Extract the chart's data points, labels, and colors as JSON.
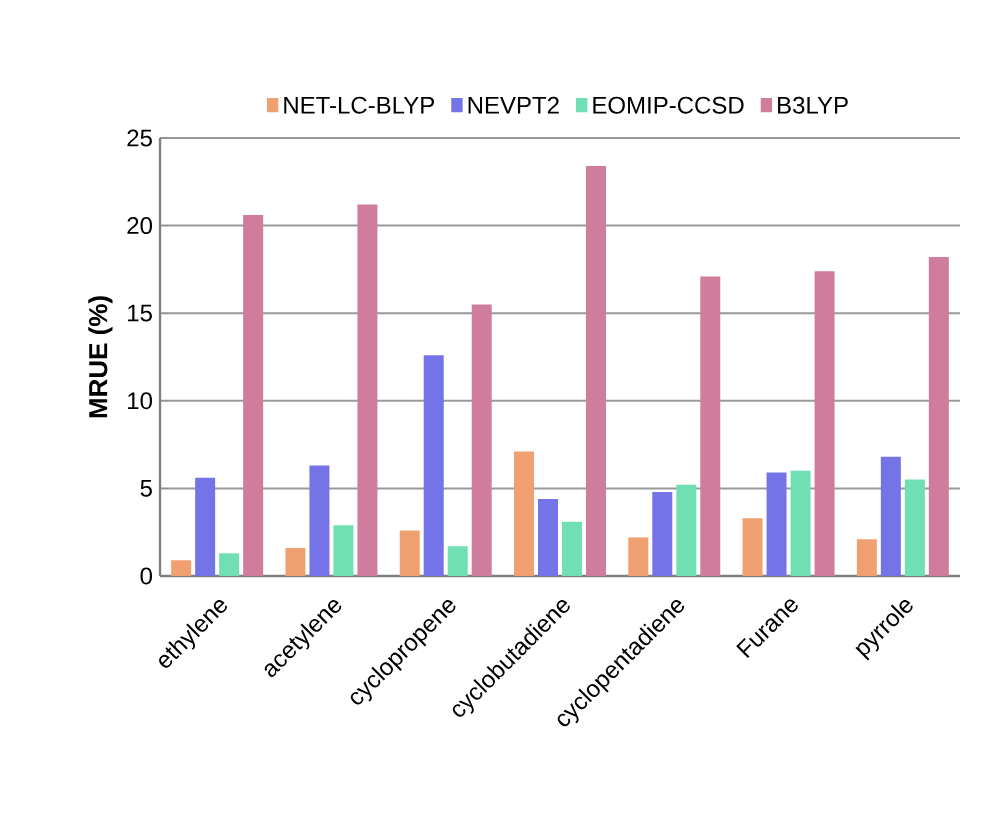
{
  "chart_data": {
    "type": "bar",
    "ylabel": "MRUE (%)",
    "categories": [
      "ethylene",
      "acetylene",
      "cyclopropene",
      "cyclobutadiene",
      "cyclopentadiene",
      "Furane",
      "pyrrole"
    ],
    "series": [
      {
        "name": "NET-LC-BLYP",
        "color": "#f0a070",
        "values": [
          0.9,
          1.6,
          2.6,
          7.1,
          2.2,
          3.3,
          2.1
        ]
      },
      {
        "name": "NEVPT2",
        "color": "#7474e8",
        "values": [
          5.6,
          6.3,
          12.6,
          4.4,
          4.8,
          5.9,
          6.8
        ]
      },
      {
        "name": "EOMIP-CCSD",
        "color": "#70e0b4",
        "values": [
          1.3,
          2.9,
          1.7,
          3.1,
          5.2,
          6.0,
          5.5
        ]
      },
      {
        "name": "B3LYP",
        "color": "#d07c9c",
        "values": [
          20.6,
          21.2,
          15.5,
          23.4,
          17.1,
          17.4,
          18.2
        ]
      }
    ],
    "ylim": [
      0,
      25
    ],
    "yticks": [
      0,
      5,
      10,
      15,
      20,
      25
    ],
    "grid": "y",
    "legend": "top"
  }
}
